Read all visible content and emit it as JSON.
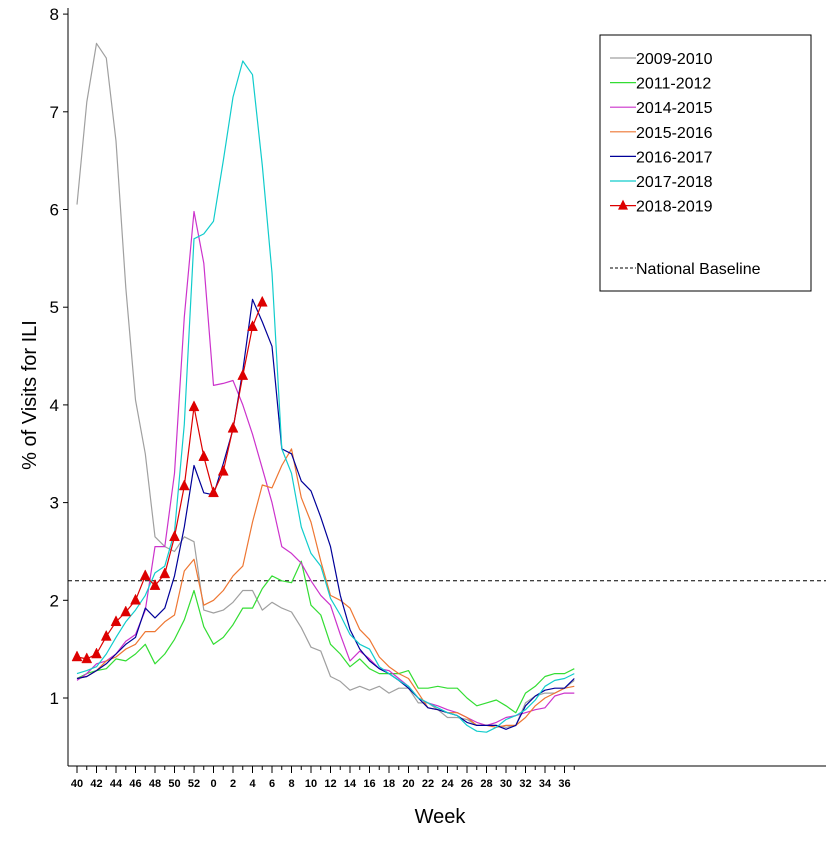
{
  "chart_data": {
    "type": "line",
    "xlabel": "Week",
    "ylabel": "% of Visits for ILI",
    "ylim": [
      0.3,
      8.1
    ],
    "yticks": [
      "1",
      "2",
      "3",
      "4",
      "5",
      "6",
      "7",
      "8"
    ],
    "x_tick_labels": [
      "40",
      "42",
      "44",
      "46",
      "48",
      "50",
      "52",
      "0",
      "2",
      "4",
      "6",
      "8",
      "10",
      "12",
      "14",
      "16",
      "18",
      "20",
      "22",
      "24",
      "26",
      "28",
      "30",
      "32",
      "34",
      "36"
    ],
    "x_categories": [
      "40",
      "41",
      "42",
      "43",
      "44",
      "45",
      "46",
      "47",
      "48",
      "49",
      "50",
      "51",
      "52",
      "53",
      "1",
      "2",
      "3",
      "4",
      "5",
      "6",
      "7",
      "8",
      "9",
      "10",
      "11",
      "12",
      "13",
      "14",
      "15",
      "16",
      "17",
      "18",
      "19",
      "20",
      "21",
      "22",
      "23",
      "24",
      "25",
      "26",
      "27",
      "28",
      "29",
      "30",
      "31",
      "32",
      "33",
      "34",
      "35",
      "36",
      "37",
      "38"
    ],
    "grid": false,
    "legend_position": "top-right",
    "legend_baseline_label": "National Baseline",
    "baseline": 2.2,
    "series": [
      {
        "name": "2009-2010",
        "color": "#a0a0a0",
        "marker": "none",
        "values": [
          6.05,
          7.1,
          7.7,
          7.55,
          6.7,
          5.2,
          4.05,
          3.5,
          2.65,
          2.55,
          2.5,
          2.65,
          2.6,
          1.9,
          1.87,
          1.9,
          1.98,
          2.1,
          2.1,
          1.9,
          1.98,
          1.92,
          1.88,
          1.72,
          1.52,
          1.48,
          1.22,
          1.17,
          1.08,
          1.12,
          1.08,
          1.12,
          1.05,
          1.1,
          1.1,
          0.95,
          0.95,
          0.88,
          0.8,
          0.8,
          0.78,
          0.72,
          0.72,
          0.72,
          0.7,
          0.72,
          0.95,
          1.02,
          1.05,
          1.05,
          1.1,
          1.18
        ]
      },
      {
        "name": "2011-2012",
        "color": "#33dd33",
        "marker": "none",
        "values": [
          1.2,
          1.25,
          1.28,
          1.3,
          1.4,
          1.38,
          1.45,
          1.55,
          1.35,
          1.45,
          1.6,
          1.8,
          2.1,
          1.73,
          1.55,
          1.62,
          1.75,
          1.92,
          1.92,
          2.12,
          2.25,
          2.2,
          2.18,
          2.4,
          1.95,
          1.85,
          1.55,
          1.45,
          1.32,
          1.4,
          1.3,
          1.25,
          1.25,
          1.25,
          1.28,
          1.1,
          1.1,
          1.12,
          1.1,
          1.1,
          1.0,
          0.92,
          0.95,
          0.98,
          0.92,
          0.85,
          1.05,
          1.12,
          1.22,
          1.25,
          1.25,
          1.3
        ]
      },
      {
        "name": "2014-2015",
        "color": "#cc33cc",
        "marker": "none",
        "values": [
          1.18,
          1.25,
          1.35,
          1.38,
          1.45,
          1.58,
          1.65,
          1.9,
          2.55,
          2.55,
          3.3,
          4.9,
          5.98,
          5.45,
          4.2,
          4.22,
          4.25,
          4.0,
          3.7,
          3.35,
          3.0,
          2.55,
          2.48,
          2.38,
          2.2,
          2.05,
          1.95,
          1.65,
          1.38,
          1.48,
          1.4,
          1.3,
          1.28,
          1.2,
          1.12,
          1.0,
          0.95,
          0.92,
          0.88,
          0.85,
          0.8,
          0.75,
          0.72,
          0.75,
          0.8,
          0.82,
          0.85,
          0.88,
          0.9,
          1.02,
          1.05,
          1.05
        ]
      },
      {
        "name": "2015-2016",
        "color": "#ee7733",
        "marker": "none",
        "values": [
          1.2,
          1.22,
          1.28,
          1.38,
          1.42,
          1.5,
          1.55,
          1.68,
          1.68,
          1.78,
          1.85,
          2.3,
          2.42,
          1.95,
          2.0,
          2.1,
          2.25,
          2.35,
          2.8,
          3.18,
          3.15,
          3.38,
          3.55,
          3.05,
          2.8,
          2.4,
          2.05,
          2.0,
          1.92,
          1.7,
          1.6,
          1.42,
          1.32,
          1.25,
          1.2,
          1.05,
          0.9,
          0.88,
          0.85,
          0.85,
          0.8,
          0.72,
          0.72,
          0.7,
          0.72,
          0.72,
          0.8,
          0.92,
          1.0,
          1.05,
          1.1,
          1.12
        ]
      },
      {
        "name": "2016-2017",
        "color": "#000099",
        "marker": "none",
        "values": [
          1.2,
          1.22,
          1.28,
          1.35,
          1.45,
          1.55,
          1.62,
          1.92,
          1.82,
          1.92,
          2.25,
          2.75,
          3.38,
          3.1,
          3.08,
          3.4,
          3.75,
          4.35,
          5.08,
          4.85,
          4.6,
          3.55,
          3.5,
          3.22,
          3.12,
          2.85,
          2.55,
          2.05,
          1.7,
          1.5,
          1.38,
          1.3,
          1.25,
          1.18,
          1.1,
          1.0,
          0.9,
          0.88,
          0.85,
          0.82,
          0.75,
          0.72,
          0.72,
          0.72,
          0.68,
          0.72,
          0.92,
          1.02,
          1.08,
          1.1,
          1.1,
          1.2
        ]
      },
      {
        "name": "2017-2018",
        "color": "#11cccc",
        "marker": "none",
        "values": [
          1.25,
          1.28,
          1.32,
          1.45,
          1.62,
          1.78,
          1.9,
          2.05,
          2.28,
          2.35,
          2.7,
          3.8,
          5.7,
          5.75,
          5.88,
          6.5,
          7.15,
          7.52,
          7.38,
          6.45,
          5.35,
          3.55,
          3.3,
          2.75,
          2.48,
          2.35,
          2.02,
          1.85,
          1.65,
          1.55,
          1.5,
          1.32,
          1.25,
          1.18,
          1.12,
          1.0,
          0.95,
          0.9,
          0.85,
          0.82,
          0.72,
          0.66,
          0.65,
          0.7,
          0.78,
          0.82,
          0.88,
          0.98,
          1.12,
          1.18,
          1.2,
          1.25
        ]
      },
      {
        "name": "2018-2019",
        "color": "#dd0000",
        "marker": "triangle",
        "values": [
          1.42,
          1.4,
          1.45,
          1.63,
          1.78,
          1.88,
          2.0,
          2.25,
          2.15,
          2.27,
          2.65,
          3.17,
          3.98,
          3.47,
          3.1,
          3.32,
          3.76,
          4.3,
          4.8,
          5.05
        ]
      }
    ]
  }
}
